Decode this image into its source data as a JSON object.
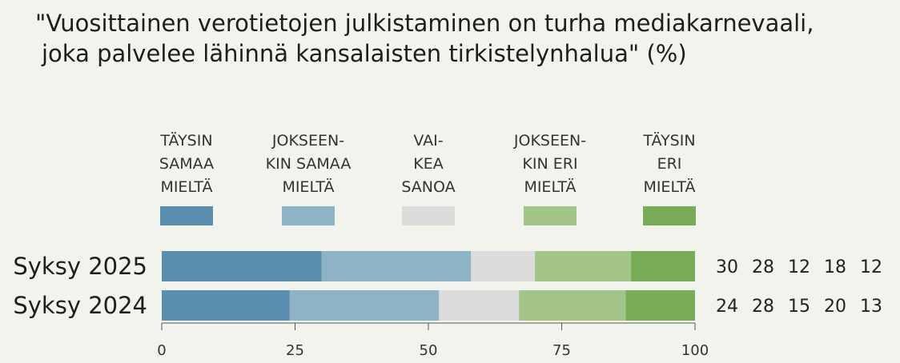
{
  "title_line1": "\"Vuosittainen verotietojen julkistaminen on turha mediakarnevaali,",
  "title_line2": "joka palvelee lähinnä kansalaisten tirkistelynhalua\" (%)",
  "chart_data": {
    "type": "bar",
    "orientation": "horizontal",
    "stacked": true,
    "title": "\"Vuosittainen verotietojen julkistaminen on turha mediakarnevaali, joka palvelee lähinnä kansalaisten tirkistelynhalua\" (%)",
    "categories": [
      "Syksy 2025",
      "Syksy 2024"
    ],
    "series": [
      {
        "name": "TÄYSIN SAMAA MIELTÄ",
        "label_lines": [
          "TÄYSIN",
          "SAMAA",
          "MIELTÄ"
        ],
        "color": "#5a8fb0",
        "values": [
          30,
          24
        ]
      },
      {
        "name": "JOKSEENKIN SAMAA MIELTÄ",
        "label_lines": [
          "JOKSEEN-",
          "KIN SAMAA",
          "MIELTÄ"
        ],
        "color": "#8fb3c6",
        "values": [
          28,
          28
        ]
      },
      {
        "name": "VAIKEA SANOA",
        "label_lines": [
          "VAI-",
          "KEA",
          "SANOA"
        ],
        "color": "#dcdcdc",
        "values": [
          12,
          15
        ]
      },
      {
        "name": "JOKSEENKIN ERI MIELTÄ",
        "label_lines": [
          "JOKSEEN-",
          "KIN ERI",
          "MIELTÄ"
        ],
        "color": "#a3c58a",
        "values": [
          18,
          20
        ]
      },
      {
        "name": "TÄYSIN ERI MIELTÄ",
        "label_lines": [
          "TÄYSIN",
          "ERI",
          "MIELTÄ"
        ],
        "color": "#79ac57",
        "values": [
          12,
          13
        ]
      }
    ],
    "xlim": [
      0,
      100
    ],
    "xticks": [
      0,
      25,
      50,
      75,
      100
    ],
    "xlabel": "",
    "ylabel": "",
    "legend": "top",
    "grid": false
  }
}
